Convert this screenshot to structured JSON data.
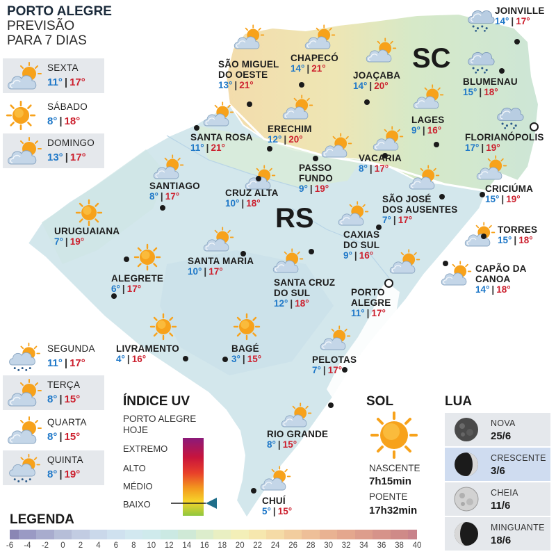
{
  "header": {
    "title": "PORTO ALEGRE",
    "line2": "PREVISÃO",
    "line3": "PARA 7 DIAS"
  },
  "days": [
    {
      "name": "SEXTA",
      "min": "11°",
      "max": "17°",
      "icon": "sun-cloud-icon",
      "shaded": true
    },
    {
      "name": "SÁBADO",
      "min": "8°",
      "max": "18°",
      "icon": "sun-icon",
      "shaded": false
    },
    {
      "name": "DOMINGO",
      "min": "13°",
      "max": "17°",
      "icon": "sun-cloud-icon",
      "shaded": true
    },
    {
      "name": "SEGUNDA",
      "min": "11°",
      "max": "17°",
      "icon": "sun-cloud-rain-icon",
      "shaded": false
    },
    {
      "name": "TERÇA",
      "min": "8°",
      "max": "15°",
      "icon": "sun-cloud-icon",
      "shaded": true
    },
    {
      "name": "QUARTA",
      "min": "8°",
      "max": "15°",
      "icon": "sun-cloud-icon",
      "shaded": false
    },
    {
      "name": "QUINTA",
      "min": "8°",
      "max": "19°",
      "icon": "sun-cloud-rain-icon",
      "shaded": true
    }
  ],
  "states": {
    "rs": "RS",
    "sc": "SC"
  },
  "cities": [
    {
      "name": "SÃO MIGUEL\nDO OESTE",
      "min": "13°",
      "max": "21°",
      "icon": "sun-cloud-icon"
    },
    {
      "name": "CHAPECÓ",
      "min": "14°",
      "max": "21°",
      "icon": "sun-cloud-icon"
    },
    {
      "name": "JOAÇABA",
      "min": "14°",
      "max": "20°",
      "icon": "sun-cloud-icon"
    },
    {
      "name": "JOINVILLE",
      "min": "14°",
      "max": "17°",
      "icon": "cloud-rain-icon"
    },
    {
      "name": "BLUMENAU",
      "min": "15°",
      "max": "18°",
      "icon": "cloud-rain-icon"
    },
    {
      "name": "LAGES",
      "min": "9°",
      "max": "16°",
      "icon": "sun-cloud-icon"
    },
    {
      "name": "FLORIANÓPOLIS",
      "min": "17°",
      "max": "19°",
      "icon": "cloud-rain-icon"
    },
    {
      "name": "SANTA ROSA",
      "min": "11°",
      "max": "21°",
      "icon": "sun-cloud-icon"
    },
    {
      "name": "ERECHIM",
      "min": "12°",
      "max": "20°",
      "icon": "sun-cloud-icon"
    },
    {
      "name": "PASSO\nFUNDO",
      "min": "9°",
      "max": "19°",
      "icon": "sun-cloud-icon"
    },
    {
      "name": "VACARIA",
      "min": "8°",
      "max": "17°",
      "icon": "sun-cloud-icon"
    },
    {
      "name": "CRICIÚMA",
      "min": "15°",
      "max": "19°",
      "icon": "sun-cloud-icon"
    },
    {
      "name": "SANTIAGO",
      "min": "8°",
      "max": "17°",
      "icon": "sun-cloud-icon"
    },
    {
      "name": "CRUZ ALTA",
      "min": "10°",
      "max": "18°",
      "icon": "sun-cloud-icon"
    },
    {
      "name": "SÃO JOSÉ\nDOS AUSENTES",
      "min": "7°",
      "max": "17°",
      "icon": "sun-cloud-icon"
    },
    {
      "name": "URUGUAIANA",
      "min": "7°",
      "max": "19°",
      "icon": "sun-icon"
    },
    {
      "name": "TORRES",
      "min": "15°",
      "max": "18°",
      "icon": "sun-cloud-icon"
    },
    {
      "name": "CAXIAS\nDO SUL",
      "min": "9°",
      "max": "16°",
      "icon": "sun-cloud-icon"
    },
    {
      "name": "SANTA MARIA",
      "min": "10°",
      "max": "17°",
      "icon": "sun-cloud-icon"
    },
    {
      "name": "ALEGRETE",
      "min": "6°",
      "max": "17°",
      "icon": "sun-icon"
    },
    {
      "name": "CAPÃO DA\nCANOA",
      "min": "14°",
      "max": "18°",
      "icon": "sun-cloud-icon"
    },
    {
      "name": "SANTA CRUZ\nDO SUL",
      "min": "12°",
      "max": "18°",
      "icon": "sun-cloud-icon"
    },
    {
      "name": "PORTO\nALEGRE",
      "min": "11°",
      "max": "17°",
      "icon": "sun-cloud-icon"
    },
    {
      "name": "LIVRAMENTO",
      "min": "4°",
      "max": "16°",
      "icon": "sun-icon"
    },
    {
      "name": "BAGÉ",
      "min": "3°",
      "max": "15°",
      "icon": "sun-icon"
    },
    {
      "name": "PELOTAS",
      "min": "7°",
      "max": "17°",
      "icon": "sun-cloud-icon"
    },
    {
      "name": "RIO GRANDE",
      "min": "8°",
      "max": "15°",
      "icon": "sun-cloud-icon"
    },
    {
      "name": "CHUÍ",
      "min": "5°",
      "max": "15°",
      "icon": "sun-cloud-icon"
    }
  ],
  "uv": {
    "title": "ÍNDICE UV",
    "subtitle_1": "PORTO ALEGRE",
    "subtitle_2": "HOJE",
    "levels": [
      "EXTREMO",
      "ALTO",
      "MÉDIO",
      "BAIXO"
    ],
    "current_level": "BAIXO"
  },
  "sol": {
    "title": "SOL",
    "rise_label": "NASCENTE",
    "rise": "7h15min",
    "set_label": "POENTE",
    "set": "17h32min"
  },
  "lua": {
    "title": "LUA",
    "phases": [
      {
        "name": "NOVA",
        "date": "25/6",
        "icon": "new-moon-icon",
        "highlight": false
      },
      {
        "name": "CRESCENTE",
        "date": "3/6",
        "icon": "waxing-moon-icon",
        "highlight": true
      },
      {
        "name": "CHEIA",
        "date": "11/6",
        "icon": "full-moon-icon",
        "highlight": false
      },
      {
        "name": "MINGUANTE",
        "date": "18/6",
        "icon": "waning-moon-icon",
        "highlight": false
      }
    ]
  },
  "legend": {
    "title": "LEGENDA",
    "ticks": [
      "-6",
      "-4",
      "-2",
      "0",
      "2",
      "4",
      "6",
      "8",
      "10",
      "12",
      "14",
      "16",
      "18",
      "20",
      "22",
      "24",
      "26",
      "28",
      "30",
      "32",
      "34",
      "36",
      "38",
      "40"
    ],
    "colors": [
      "#8a86b4",
      "#9a9ac4",
      "#a8acce",
      "#b6bed8",
      "#c2cce2",
      "#cad8ea",
      "#cfe1ef",
      "#d2e8f0",
      "#cfeaec",
      "#cbe9e3",
      "#cfe9d6",
      "#dcedcc",
      "#e9efc2",
      "#f3efb8",
      "#f6e7ae",
      "#f5dba6",
      "#f2cd9e",
      "#eebf98",
      "#e9b292",
      "#e4a78e",
      "#dd9d8c",
      "#d6938a",
      "#cf8a88",
      "#c8828a"
    ]
  },
  "colors": {
    "min_temp": "#1f78c8",
    "max_temp": "#cc1f2d",
    "sun": "#f7a21b",
    "cloud": "#b9cde0"
  }
}
